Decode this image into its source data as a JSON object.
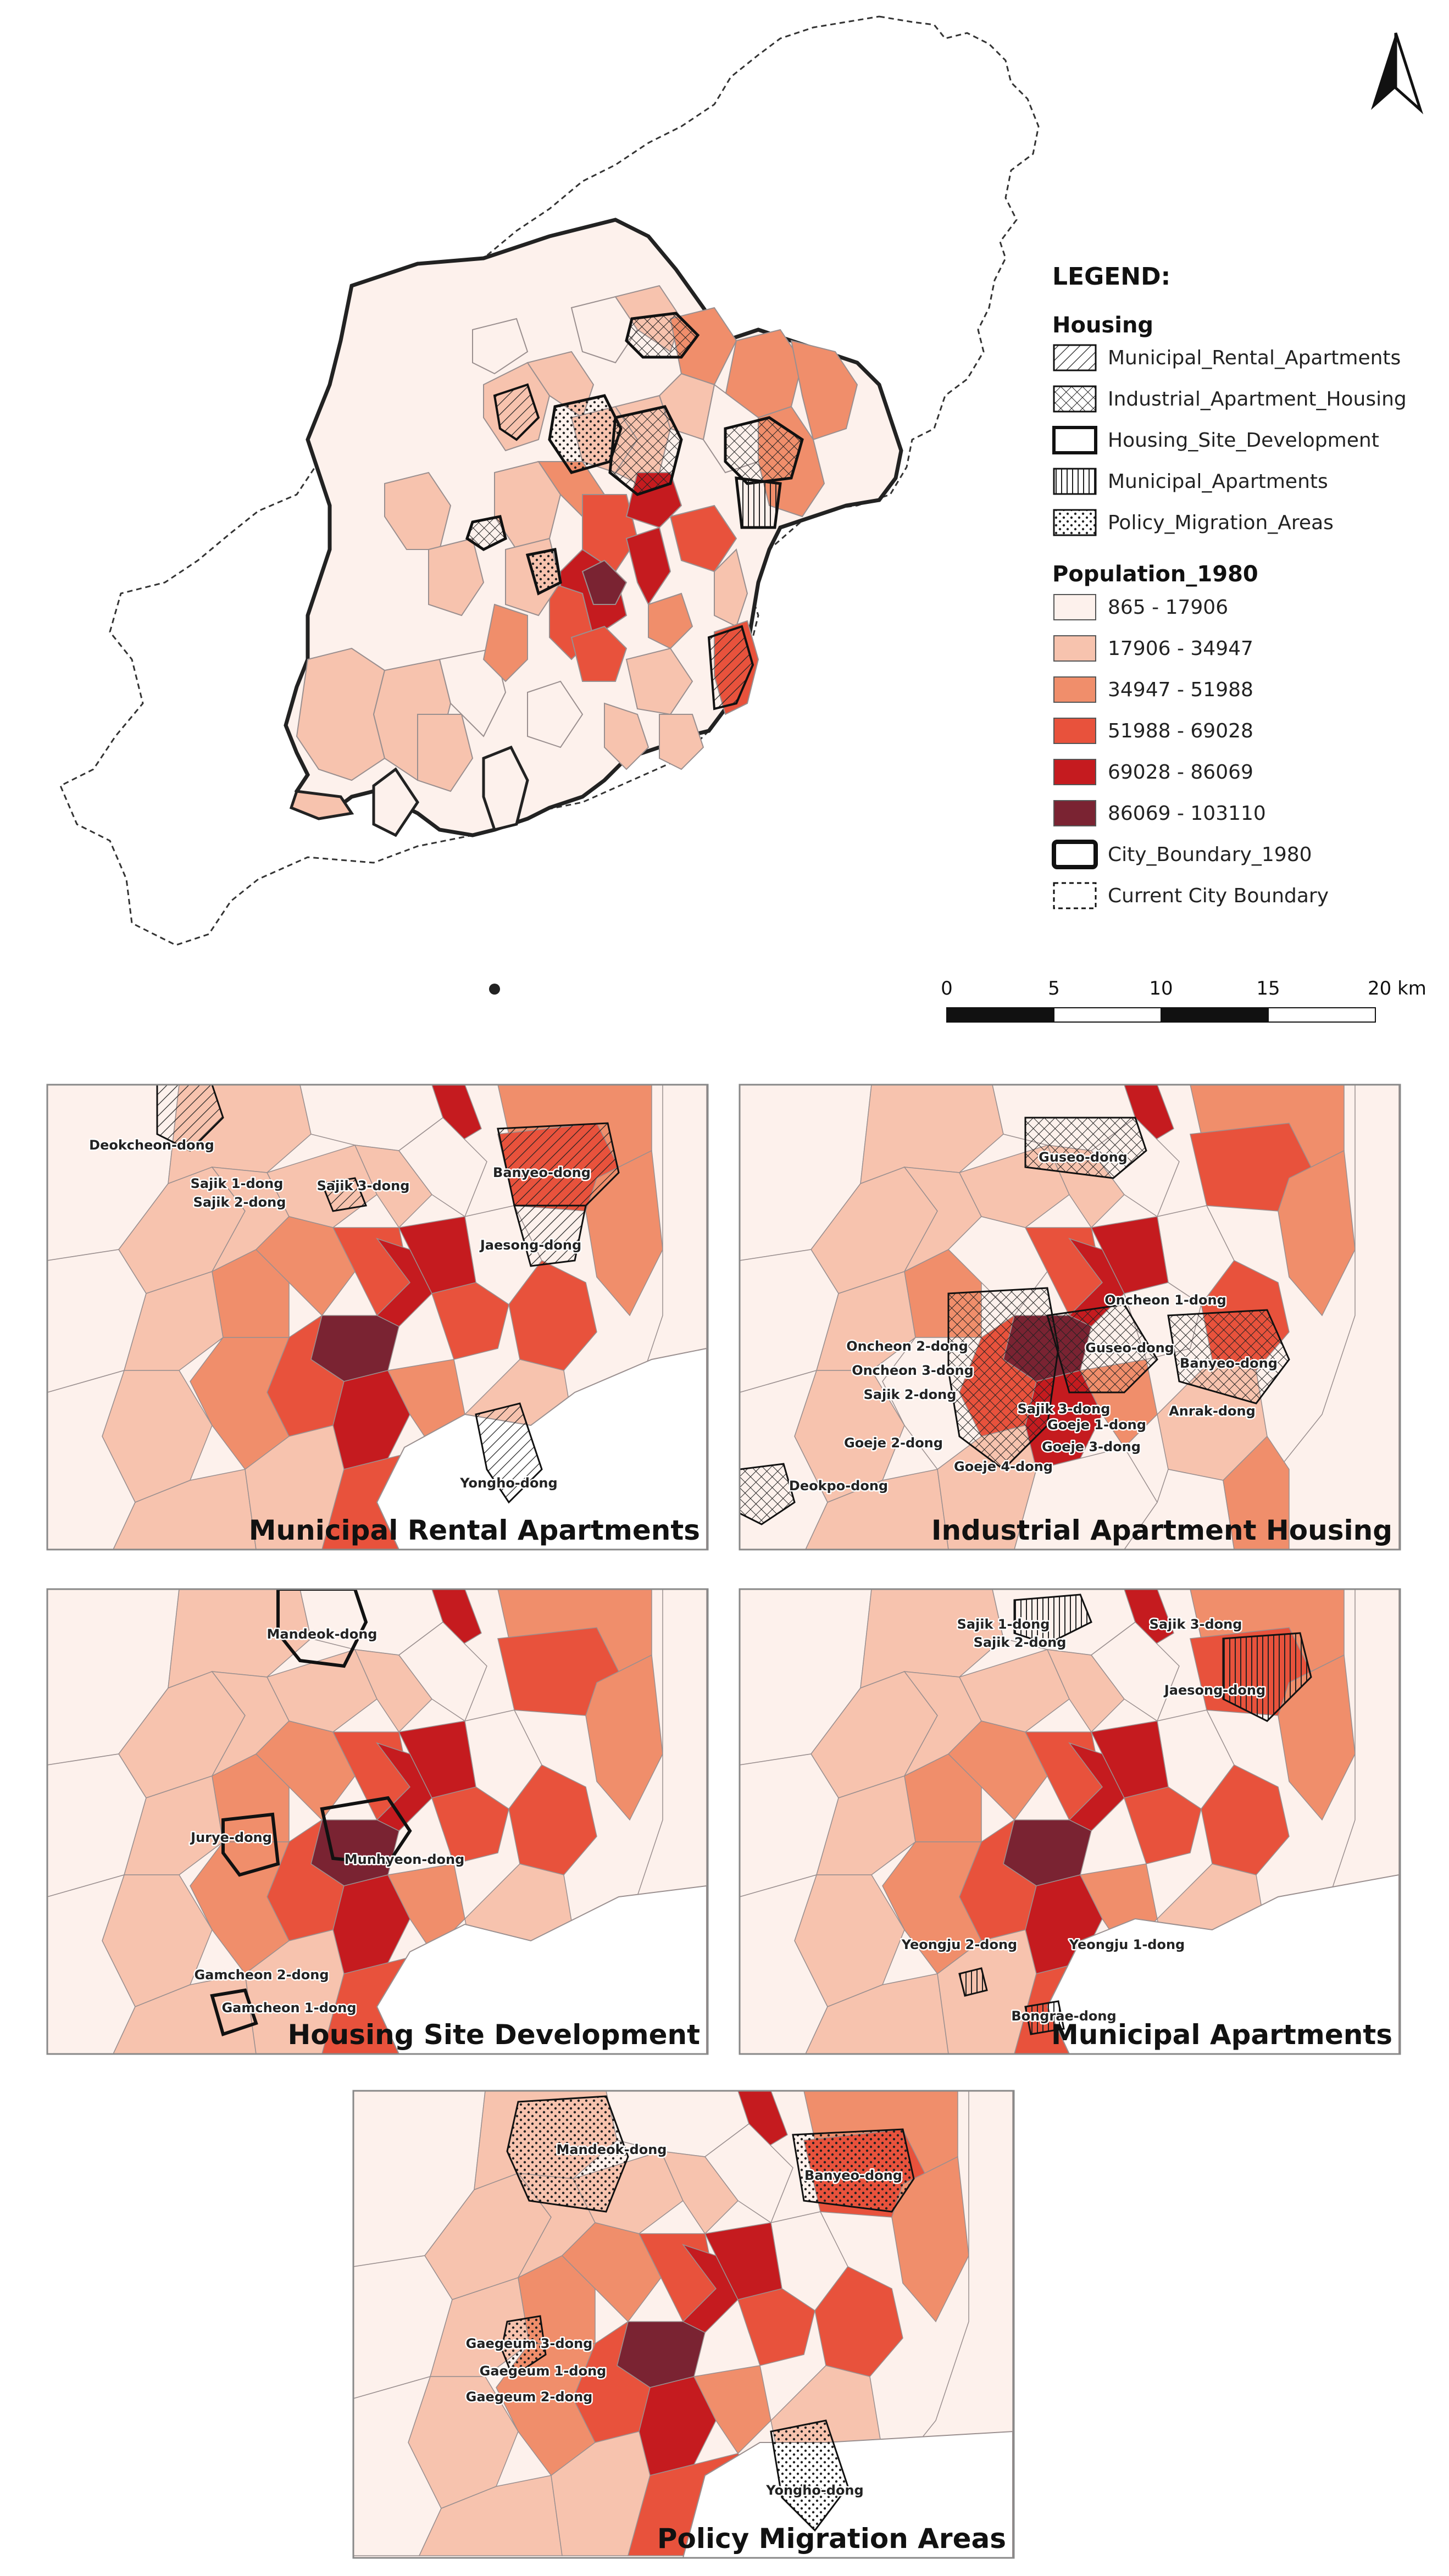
{
  "legend": {
    "title": "LEGEND:",
    "housing_heading": "Housing",
    "housing": [
      {
        "label": "Municipal_Rental_Apartments",
        "pattern": "hatch-diagonal"
      },
      {
        "label": "Industrial_Apartment_Housing",
        "pattern": "cross-hatch"
      },
      {
        "label": "Housing_Site_Development",
        "pattern": "outline"
      },
      {
        "label": "Municipal_Apartments",
        "pattern": "vertical-lines"
      },
      {
        "label": "Policy_Migration_Areas",
        "pattern": "dots"
      }
    ],
    "population_heading": "Population_1980",
    "population": [
      {
        "label": "865 - 17906",
        "color": "#fdf1ec"
      },
      {
        "label": "17906 - 34947",
        "color": "#f7c3ae"
      },
      {
        "label": "34947 - 51988",
        "color": "#f08e6b"
      },
      {
        "label": "51988 - 69028",
        "color": "#e8523c"
      },
      {
        "label": "69028 - 86069",
        "color": "#c51b1f"
      },
      {
        "label": "86069 - 103110",
        "color": "#7a2332"
      }
    ],
    "boundaries": [
      {
        "label": "City_Boundary_1980",
        "style": "thick-solid"
      },
      {
        "label": "Current City Boundary",
        "style": "dashed"
      }
    ]
  },
  "scale_bar": {
    "labels": [
      "0",
      "5",
      "10",
      "15",
      "20 km"
    ]
  },
  "north_arrow": {
    "icon": "north-arrow-icon"
  },
  "panels": [
    {
      "title": "Municipal Rental Apartments",
      "places": [
        "Deokcheon-dong",
        "Sajik 1-dong",
        "Sajik 2-dong",
        "Sajik 3-dong",
        "Banyeo-dong",
        "Jaesong-dong",
        "Yongho-dong"
      ]
    },
    {
      "title": "Industrial Apartment Housing",
      "places": [
        "Guseo-dong",
        "Oncheon 1-dong",
        "Oncheon 2-dong",
        "Oncheon 3-dong",
        "Guseo-dong",
        "Banyeo-dong",
        "Sajik 2-dong",
        "Sajik 3-dong",
        "Anrak-dong",
        "Goeje 1-dong",
        "Goeje 2-dong",
        "Goeje 3-dong",
        "Goeje 4-dong",
        "Deokpo-dong"
      ]
    },
    {
      "title": "Housing Site Development",
      "places": [
        "Mandeok-dong",
        "Jurye-dong",
        "Munhyeon-dong",
        "Gamcheon 2-dong",
        "Gamcheon 1-dong"
      ]
    },
    {
      "title": "Municipal Apartments",
      "places": [
        "Sajik 1-dong",
        "Sajik 2-dong",
        "Sajik 3-dong",
        "Jaesong-dong",
        "Yeongju 2-dong",
        "Yeongju 1-dong",
        "Bongrae-dong"
      ]
    },
    {
      "title": "Policy Migration Areas",
      "places": [
        "Mandeok-dong",
        "Banyeo-dong",
        "Gaegeum 3-dong",
        "Gaegeum 1-dong",
        "Gaegeum 2-dong",
        "Yongho-dong"
      ]
    }
  ]
}
